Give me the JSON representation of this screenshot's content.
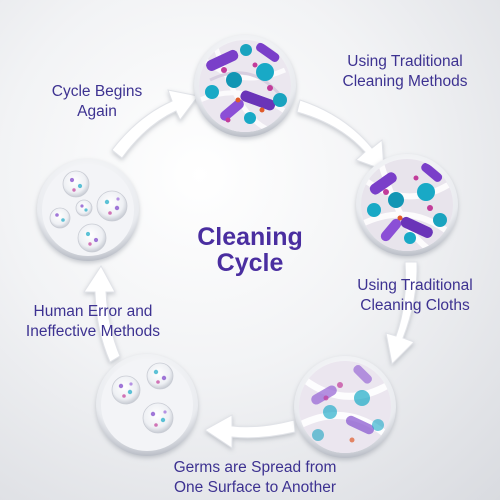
{
  "title": {
    "line1": "Cleaning",
    "line2": "Cycle"
  },
  "steps": [
    {
      "line1": "Using Traditional",
      "line2": "Cleaning Methods",
      "illustration": "dense-germ-cluster"
    },
    {
      "line1": "Using Traditional",
      "line2": "Cleaning Cloths",
      "illustration": "germ-cloth-cluster"
    },
    {
      "line1": "Germs are Spread from",
      "line2": "One Surface to Another",
      "illustration": "spreading-germ-cluster"
    },
    {
      "line1": "Human Error and",
      "line2": "Ineffective Methods",
      "illustration": "three-germ-bubbles"
    },
    {
      "line1": "Cycle Begins",
      "line2": "Again",
      "illustration": "four-germ-bubbles"
    }
  ],
  "colors": {
    "text": "#3d3291",
    "title": "#4a2ea0",
    "arrow": "#ffffff",
    "purple_germ": "#7a3fc9",
    "teal_germ": "#19a9c6",
    "magenta_germ": "#c23c9a"
  }
}
